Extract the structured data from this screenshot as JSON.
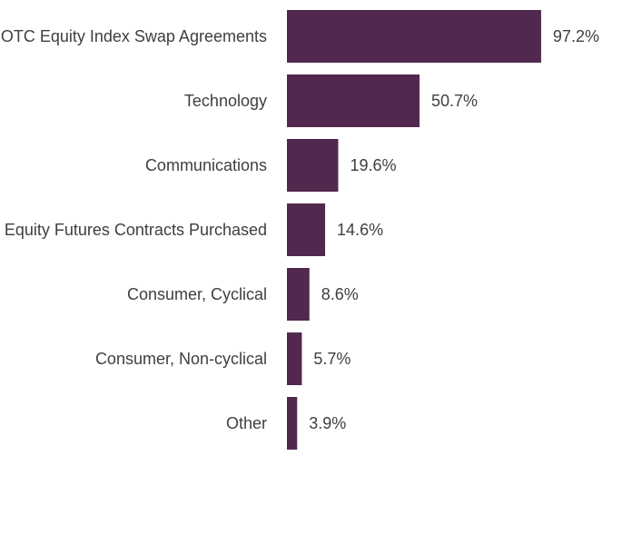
{
  "chart_data": {
    "type": "bar",
    "orientation": "horizontal",
    "categories": [
      "OTC Equity Index Swap Agreements",
      "Technology",
      "Communications",
      "Equity Futures Contracts Purchased",
      "Consumer, Cyclical",
      "Consumer, Non-cyclical",
      "Other"
    ],
    "values": [
      97.2,
      50.7,
      19.6,
      14.6,
      8.6,
      5.7,
      3.9
    ],
    "value_labels": [
      "97.2%",
      "50.7%",
      "19.6%",
      "14.6%",
      "8.6%",
      "5.7%",
      "3.9%"
    ],
    "title": "",
    "xlabel": "",
    "ylabel": "",
    "grid": false,
    "legend": "none",
    "bar_color": "#52284e",
    "text_color": "#3f3f3f"
  }
}
